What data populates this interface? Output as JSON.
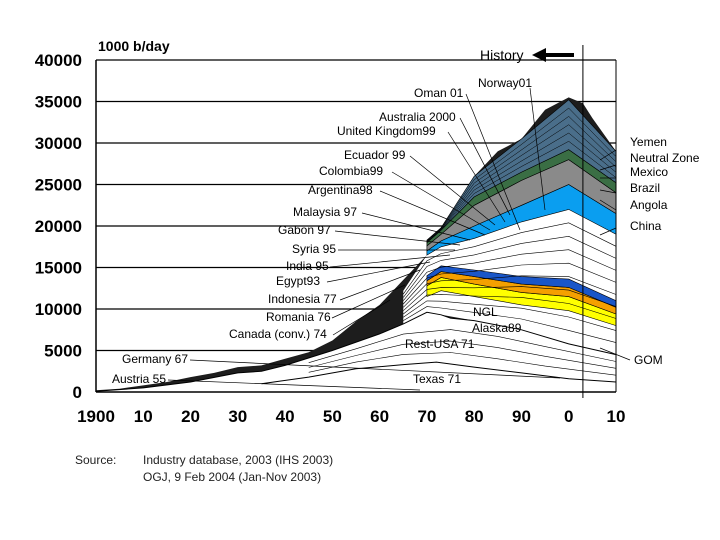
{
  "chart_data": {
    "type": "area",
    "unit_label": "1000 b/day",
    "history_label": "History",
    "ylim": [
      0,
      40000
    ],
    "y_ticks": [
      "0",
      "5000",
      "10000",
      "15000",
      "20000",
      "25000",
      "30000",
      "35000",
      "40000"
    ],
    "x_ticks": [
      "1900",
      "10",
      "20",
      "30",
      "40",
      "50",
      "60",
      "70",
      "80",
      "90",
      "0",
      "10"
    ],
    "xlim": [
      1900,
      2010
    ],
    "history_end_year": 2003,
    "total_envelope": {
      "x": [
        1900,
        1905,
        1910,
        1915,
        1920,
        1925,
        1930,
        1935,
        1940,
        1945,
        1950,
        1955,
        1960,
        1965,
        1970,
        1973,
        1975,
        1980,
        1985,
        1990,
        1995,
        2000,
        2003,
        2005,
        2010
      ],
      "y": [
        200,
        400,
        800,
        1200,
        1800,
        2300,
        3000,
        3200,
        4000,
        4800,
        6200,
        8500,
        10500,
        13500,
        16500,
        19500,
        20500,
        26000,
        29000,
        30500,
        34000,
        35500,
        34800,
        33000,
        29000
      ]
    },
    "usa_lower48_curve": {
      "x": [
        1900,
        1910,
        1920,
        1930,
        1935,
        1940,
        1950,
        1960,
        1965,
        1970,
        1973,
        1975,
        1980,
        1990,
        2000,
        2010
      ],
      "y": [
        100,
        500,
        1200,
        2300,
        2500,
        3200,
        5000,
        7000,
        8200,
        9600,
        9300,
        8900,
        8600,
        7500,
        5800,
        4500
      ]
    },
    "texas_curve": {
      "x": [
        1935,
        1945,
        1955,
        1965,
        1972,
        1980,
        1990,
        2000,
        2010
      ],
      "y": [
        1000,
        1800,
        2800,
        3300,
        3600,
        3000,
        2300,
        1600,
        1200
      ]
    },
    "colored_bands": [
      {
        "name": "yellow",
        "color": "#ffff00",
        "x": [
          1970,
          1973,
          1980,
          1990,
          2000,
          2010
        ],
        "lower": [
          11500,
          12200,
          11500,
          10500,
          9800,
          8000
        ],
        "upper": [
          12800,
          13800,
          13000,
          12000,
          11500,
          9400
        ]
      },
      {
        "name": "orange",
        "color": "#f5a000",
        "x": [
          1970,
          1973,
          1980,
          1990,
          2000,
          2010
        ],
        "lower": [
          12800,
          13800,
          13000,
          12000,
          11500,
          9400
        ],
        "upper": [
          13400,
          14500,
          13900,
          13000,
          12600,
          10200
        ]
      },
      {
        "name": "blue",
        "color": "#1a56c8",
        "x": [
          1970,
          1973,
          1980,
          1990,
          2000,
          2010
        ],
        "lower": [
          13400,
          14500,
          13900,
          13000,
          12600,
          10200
        ],
        "upper": [
          14000,
          15200,
          14700,
          13900,
          13600,
          11000
        ]
      },
      {
        "name": "light-blue",
        "color": "#0a9ef0",
        "x": [
          1970,
          1973,
          1980,
          1990,
          2000,
          2010
        ],
        "lower": [
          16500,
          17500,
          18500,
          20500,
          22000,
          19000
        ],
        "upper": [
          17000,
          18200,
          20000,
          22500,
          25000,
          21500
        ]
      },
      {
        "name": "grey",
        "color": "#8a8a8a",
        "x": [
          1970,
          1973,
          1980,
          1990,
          2000,
          2010
        ],
        "lower": [
          17000,
          18200,
          20000,
          22500,
          25000,
          21500
        ],
        "upper": [
          17600,
          19000,
          22500,
          25500,
          28000,
          24000
        ]
      },
      {
        "name": "green",
        "color": "#3a6e44",
        "x": [
          1970,
          1973,
          1980,
          1990,
          2000,
          2010
        ],
        "lower": [
          17600,
          19000,
          22500,
          25500,
          28000,
          24000
        ],
        "upper": [
          18000,
          19500,
          23500,
          26500,
          29200,
          25200
        ]
      },
      {
        "name": "steel-blue",
        "color": "#4a6e8a",
        "x": [
          1970,
          1973,
          1980,
          1990,
          2000,
          2010
        ],
        "lower": [
          18000,
          19500,
          23500,
          26500,
          29200,
          25200
        ],
        "upper": [
          18300,
          19800,
          26000,
          30500,
          35200,
          29000
        ]
      }
    ],
    "annotations_left": [
      "Oman 01",
      "Norway01",
      "Australia 2000",
      "United Kingdom99",
      "Ecuador 99",
      "Colombia99",
      "Argentina98",
      "Malaysia 97",
      "Gabon 97",
      "Syria 95",
      "India 95",
      "Egypt93",
      "Indonesia 77",
      "Romania 76",
      "Canada (conv.) 74",
      "Germany 67",
      "Austria 55"
    ],
    "annotations_inner": [
      "NGL",
      "Alaska89",
      "Rest-USA 71",
      "Texas 71"
    ],
    "annotations_right": [
      "Yemen",
      "Neutral Zone",
      "Mexico",
      "Brazil",
      "Angola",
      "China",
      "GOM"
    ],
    "source_label": "Source:",
    "source_lines": [
      "Industry database, 2003 (IHS 2003)",
      "OGJ, 9 Feb 2004 (Jan-Nov 2003)"
    ]
  }
}
